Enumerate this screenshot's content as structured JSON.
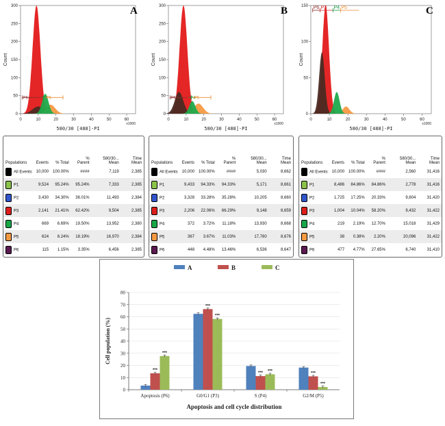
{
  "panels": [
    {
      "letter": "A",
      "histogram": {
        "ylabel": "Count",
        "xlabel": "580/30 [488]-PI",
        "xscale": "x1000",
        "yticks": [
          "0",
          "50",
          "100",
          "150",
          "200",
          "250",
          "300"
        ],
        "xticks": [
          "0",
          "10",
          "20",
          "30",
          "40",
          "50",
          "60"
        ],
        "gate_labels": [
          "P6",
          "P3",
          "P4",
          "P5"
        ]
      },
      "table": {
        "headers": [
          "Populations",
          "Events",
          "% Total",
          "% Parent",
          "580/30... Mean",
          "Time Mean"
        ],
        "rows": [
          {
            "pop": "All Events",
            "color": "#000000",
            "level": 0,
            "events": "10,000",
            "total": "100.00%",
            "parent": "####",
            "mean": "7,119",
            "time": "2,385"
          },
          {
            "pop": "P1",
            "color": "#8bc34a",
            "level": 1,
            "events": "9,524",
            "total": "95.24%",
            "parent": "95.24%",
            "mean": "7,333",
            "time": "2,385"
          },
          {
            "pop": "P2",
            "color": "#3355cc",
            "level": 2,
            "events": "3,430",
            "total": "34.30%",
            "parent": "36.01%",
            "mean": "11,493",
            "time": "2,384"
          },
          {
            "pop": "P3",
            "color": "#dd1c1c",
            "level": 3,
            "events": "2,141",
            "total": "21.41%",
            "parent": "62.42%",
            "mean": "9,504",
            "time": "2,385"
          },
          {
            "pop": "P4",
            "color": "#18a648",
            "level": 3,
            "events": "669",
            "total": "6.69%",
            "parent": "19.50%",
            "mean": "13,952",
            "time": "2,380"
          },
          {
            "pop": "P5",
            "color": "#f59a42",
            "level": 3,
            "events": "624",
            "total": "6.24%",
            "parent": "18.19%",
            "mean": "16,970",
            "time": "2,384"
          },
          {
            "pop": "P6",
            "color": "#5a1a50",
            "level": 3,
            "events": "115",
            "total": "1.15%",
            "parent": "3.35%",
            "mean": "6,456",
            "time": "2,385"
          }
        ]
      }
    },
    {
      "letter": "B",
      "histogram": {
        "ylabel": "Count",
        "xlabel": "580/30 [488]-PI",
        "xscale": "x1000",
        "yticks": [
          "0",
          "50",
          "100",
          "150",
          "200",
          "250",
          "300"
        ],
        "xticks": [
          "0",
          "10",
          "20",
          "30",
          "40",
          "50",
          "60"
        ],
        "gate_labels": [
          "P6",
          "P3",
          "P4",
          "P5"
        ]
      },
      "table": {
        "headers": [
          "Populations",
          "Events",
          "% Total",
          "% Parent",
          "580/30... Mean",
          "Time Mean"
        ],
        "rows": [
          {
            "pop": "All Events",
            "color": "#000000",
            "level": 0,
            "events": "10,000",
            "total": "100.00%",
            "parent": "####",
            "mean": "5,030",
            "time": "8,662"
          },
          {
            "pop": "P1",
            "color": "#8bc34a",
            "level": 1,
            "events": "9,433",
            "total": "94.33%",
            "parent": "94.33%",
            "mean": "5,171",
            "time": "8,661"
          },
          {
            "pop": "P2",
            "color": "#3355cc",
            "level": 2,
            "events": "3,328",
            "total": "33.28%",
            "parent": "35.28%",
            "mean": "10,205",
            "time": "8,660"
          },
          {
            "pop": "P3",
            "color": "#dd1c1c",
            "level": 3,
            "events": "2,206",
            "total": "22.06%",
            "parent": "66.29%",
            "mean": "9,148",
            "time": "8,659"
          },
          {
            "pop": "P4",
            "color": "#18a648",
            "level": 3,
            "events": "372",
            "total": "3.72%",
            "parent": "11.18%",
            "mean": "13,930",
            "time": "8,668"
          },
          {
            "pop": "P5",
            "color": "#f59a42",
            "level": 3,
            "events": "367",
            "total": "3.67%",
            "parent": "11.03%",
            "mean": "17,760",
            "time": "8,676"
          },
          {
            "pop": "P6",
            "color": "#5a1a50",
            "level": 3,
            "events": "448",
            "total": "4.48%",
            "parent": "13.46%",
            "mean": "6,536",
            "time": "8,647"
          }
        ]
      }
    },
    {
      "letter": "C",
      "histogram": {
        "ylabel": "Count",
        "xlabel": "580/30 [488]-PI",
        "xscale": "x1000",
        "yticks": [
          "0",
          "50",
          "100",
          "150"
        ],
        "xticks": [
          "0",
          "10",
          "20",
          "30",
          "40",
          "50",
          "60"
        ],
        "gate_labels": [
          "P6",
          "P3",
          "P4",
          "P5"
        ]
      },
      "table": {
        "headers": [
          "Populations",
          "Events",
          "% Total",
          "% Parent",
          "580/30... Mean",
          "Time Mean"
        ],
        "rows": [
          {
            "pop": "All Events",
            "color": "#000000",
            "level": 0,
            "events": "10,000",
            "total": "100.00%",
            "parent": "####",
            "mean": "2,560",
            "time": "31,416"
          },
          {
            "pop": "P1",
            "color": "#8bc34a",
            "level": 1,
            "events": "8,486",
            "total": "84.86%",
            "parent": "84.86%",
            "mean": "2,778",
            "time": "31,416"
          },
          {
            "pop": "P2",
            "color": "#3355cc",
            "level": 2,
            "events": "1,725",
            "total": "17.25%",
            "parent": "20.33%",
            "mean": "9,604",
            "time": "31,420"
          },
          {
            "pop": "P3",
            "color": "#dd1c1c",
            "level": 3,
            "events": "1,004",
            "total": "10.04%",
            "parent": "58.20%",
            "mean": "9,432",
            "time": "31,422"
          },
          {
            "pop": "P4",
            "color": "#18a648",
            "level": 3,
            "events": "219",
            "total": "2.19%",
            "parent": "12.70%",
            "mean": "15,018",
            "time": "31,429"
          },
          {
            "pop": "P5",
            "color": "#f59a42",
            "level": 3,
            "events": "38",
            "total": "0.38%",
            "parent": "2.20%",
            "mean": "20,096",
            "time": "31,422"
          },
          {
            "pop": "P6",
            "color": "#5a1a50",
            "level": 3,
            "events": "477",
            "total": "4.77%",
            "parent": "27.65%",
            "mean": "6,740",
            "time": "31,410"
          }
        ]
      }
    }
  ],
  "chart_data": {
    "type": "bar",
    "title": "",
    "xlabel": "Apoptosis and cell cycle distribution",
    "ylabel": "Cell population (%)",
    "ylim": [
      0,
      80
    ],
    "yticks": [
      0,
      10,
      20,
      30,
      40,
      50,
      60,
      70,
      80
    ],
    "categories": [
      "Apoptosis (P6)",
      "G0/G1 (P3)",
      "S (P4)",
      "G2/M (P5)"
    ],
    "series": [
      {
        "name": "A",
        "color": "#4f81bd",
        "values": [
          3.4,
          62.4,
          19.5,
          18.2
        ]
      },
      {
        "name": "B",
        "color": "#c0504d",
        "values": [
          13.5,
          66.3,
          11.2,
          11.0
        ]
      },
      {
        "name": "C",
        "color": "#9bbb59",
        "values": [
          27.7,
          58.2,
          12.7,
          2.2
        ]
      }
    ],
    "significance": [
      [
        "",
        "",
        "",
        ""
      ],
      [
        "***",
        "***",
        "***",
        "***"
      ],
      [
        "***",
        "***",
        "***",
        "***"
      ]
    ],
    "legend_position": "top"
  }
}
